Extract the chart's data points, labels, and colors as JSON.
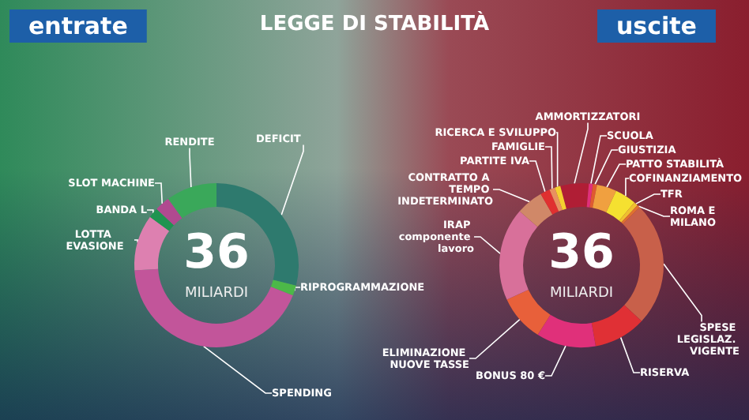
{
  "chart_data": [
    {
      "type": "donut",
      "title": "entrate",
      "subtitle": "LEGGE DI STABILITÀ",
      "annotations": [
        "36",
        "MILIARDI"
      ],
      "categories": [
        "DEFICIT",
        "RIPROGRAMMAZIONE",
        "SPENDING",
        "LOTTA EVASIONE",
        "BANDA L",
        "SLOT MACHINE",
        "RENDITE"
      ],
      "values": [
        29,
        2,
        43,
        11,
        2,
        3,
        10
      ],
      "colors": [
        "#2e7a6e",
        "#4cb848",
        "#c2559a",
        "#dd80b0",
        "#1f9450",
        "#b04a90",
        "#3aa85a"
      ],
      "legend": false
    },
    {
      "type": "donut",
      "title": "uscite",
      "annotations": [
        "36",
        "MILIARDI"
      ],
      "categories": [
        "AMMORTIZZATORI",
        "SCUOLA",
        "GIUSTIZIA",
        "PATTO STABILITÀ",
        "COFINANZIAMENTO",
        "TFR",
        "ROMA E MILANO",
        "SPESE LEGISLAZ. VIGENTE",
        "RISERVA",
        "BONUS 80 €",
        "ELIMINAZIONE NUOVE TASSE",
        "IRAP componente lavoro",
        "CONTRATTO A TEMPO INDETERMINATO",
        "PARTITE IVA",
        "FAMIGLIE",
        "RICERCA E SVILUPPO"
      ],
      "values": [
        5.6,
        0.8,
        0.8,
        3.9,
        4.2,
        0.8,
        0.6,
        24.4,
        10.3,
        11.7,
        9.2,
        18.3,
        5.3,
        1.9,
        1.1,
        1.1
      ],
      "colors": [
        "#b01e35",
        "#e0307a",
        "#e05a30",
        "#f0a040",
        "#f5e030",
        "#f0c030",
        "#e07030",
        "#c8604a",
        "#e03035",
        "#e0307a",
        "#e8603a",
        "#d8709a",
        "#d08868",
        "#e03030",
        "#e89060",
        "#f5d030"
      ],
      "legend": false
    }
  ]
}
